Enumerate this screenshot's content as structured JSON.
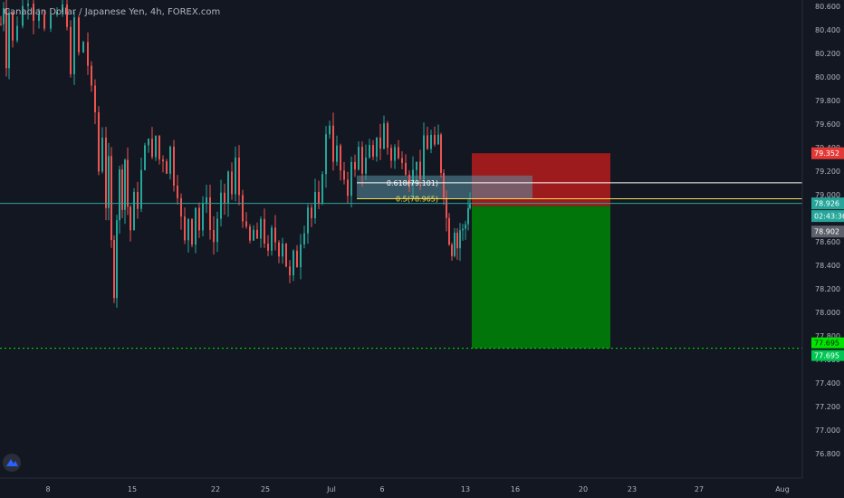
{
  "header": {
    "title": "Canadian Dollar / Japanese Yen, 4h, FOREX.com"
  },
  "colors": {
    "background": "#131722",
    "bull": "#26a69a",
    "bear": "#ef5350",
    "stop_zone": "#b71c1c",
    "target_zone": "#007a0a",
    "price_line": "#26a69a",
    "fib_0618": "#ffffff",
    "fib_05": "#f0e050",
    "target_line": "#00e600",
    "axis_text": "#b2b5be"
  },
  "chart_data": {
    "type": "candlestick",
    "symbol": "CADJPY",
    "timeframe": "4h",
    "y_axis": {
      "ylim": [
        76.7,
        80.68
      ],
      "ticks": [
        "80.600",
        "80.400",
        "80.200",
        "80.000",
        "79.800",
        "79.600",
        "79.400",
        "79.200",
        "79.000",
        "78.800",
        "78.600",
        "78.400",
        "78.200",
        "78.000",
        "77.800",
        "77.600",
        "77.400",
        "77.200",
        "77.000",
        "76.800"
      ]
    },
    "x_axis": {
      "ticks": [
        "8",
        "15",
        "22",
        "25",
        "Jul",
        "6",
        "13",
        "16",
        "20",
        "23",
        "27",
        "Aug"
      ]
    },
    "price_labels": {
      "stop": "79.352",
      "current": "78.926",
      "countdown": "02:43:36",
      "entry": "78.902",
      "target_top": "77.695",
      "target_bottom": "77.695"
    },
    "fib_levels": [
      {
        "label": "0.618(79.101)",
        "value": 79.101
      },
      {
        "label": "0.5(78.965)",
        "value": 78.965
      }
    ],
    "position": {
      "side": "short",
      "entry": 78.902,
      "stop": 79.352,
      "target": 77.695
    },
    "candle_path": [
      [
        0,
        80.45
      ],
      [
        3,
        80.6
      ],
      [
        6,
        80.1
      ],
      [
        9,
        80.55
      ],
      [
        13,
        80.3
      ],
      [
        18,
        80.45
      ],
      [
        24,
        80.6
      ],
      [
        30,
        80.65
      ],
      [
        36,
        80.5
      ],
      [
        42,
        80.55
      ],
      [
        48,
        80.4
      ],
      [
        55,
        80.5
      ],
      [
        62,
        80.55
      ],
      [
        68,
        80.6
      ],
      [
        73,
        80.45
      ],
      [
        77,
        80.0
      ],
      [
        81,
        80.5
      ],
      [
        86,
        80.2
      ],
      [
        91,
        80.3
      ],
      [
        96,
        80.1
      ],
      [
        100,
        79.9
      ],
      [
        104,
        79.7
      ],
      [
        108,
        79.2
      ],
      [
        112,
        79.5
      ],
      [
        116,
        78.9
      ],
      [
        119,
        79.3
      ],
      [
        122,
        78.6
      ],
      [
        125,
        78.15
      ],
      [
        128,
        78.8
      ],
      [
        131,
        79.2
      ],
      [
        134,
        78.9
      ],
      [
        137,
        79.3
      ],
      [
        140,
        78.9
      ],
      [
        143,
        78.7
      ],
      [
        147,
        79.0
      ],
      [
        151,
        78.9
      ],
      [
        155,
        79.2
      ],
      [
        159,
        79.4
      ],
      [
        163,
        79.5
      ],
      [
        167,
        79.3
      ],
      [
        171,
        79.5
      ],
      [
        175,
        79.3
      ],
      [
        179,
        79.3
      ],
      [
        183,
        79.2
      ],
      [
        187,
        79.4
      ],
      [
        191,
        79.1
      ],
      [
        195,
        79.0
      ],
      [
        199,
        78.8
      ],
      [
        203,
        78.6
      ],
      [
        207,
        78.8
      ],
      [
        211,
        78.6
      ],
      [
        215,
        78.9
      ],
      [
        219,
        78.7
      ],
      [
        223,
        78.9
      ],
      [
        227,
        79.0
      ],
      [
        231,
        78.7
      ],
      [
        235,
        78.6
      ],
      [
        239,
        78.8
      ],
      [
        243,
        79.0
      ],
      [
        247,
        78.9
      ],
      [
        251,
        79.2
      ],
      [
        255,
        79.0
      ],
      [
        259,
        79.3
      ],
      [
        263,
        79.0
      ],
      [
        267,
        78.8
      ],
      [
        271,
        78.7
      ],
      [
        275,
        78.6
      ],
      [
        279,
        78.7
      ],
      [
        283,
        78.6
      ],
      [
        287,
        78.8
      ],
      [
        291,
        78.6
      ],
      [
        295,
        78.5
      ],
      [
        299,
        78.7
      ],
      [
        303,
        78.6
      ],
      [
        307,
        78.5
      ],
      [
        311,
        78.6
      ],
      [
        315,
        78.4
      ],
      [
        319,
        78.3
      ],
      [
        323,
        78.5
      ],
      [
        327,
        78.4
      ],
      [
        331,
        78.6
      ],
      [
        335,
        78.7
      ],
      [
        339,
        78.9
      ],
      [
        343,
        78.8
      ],
      [
        347,
        79.0
      ],
      [
        351,
        78.9
      ],
      [
        355,
        79.2
      ],
      [
        359,
        79.5
      ],
      [
        363,
        79.6
      ],
      [
        367,
        79.3
      ],
      [
        371,
        79.4
      ],
      [
        375,
        79.2
      ],
      [
        379,
        79.1
      ],
      [
        383,
        79.0
      ],
      [
        387,
        79.3
      ],
      [
        391,
        79.2
      ],
      [
        395,
        79.4
      ],
      [
        399,
        79.2
      ],
      [
        403,
        79.3
      ],
      [
        407,
        79.4
      ],
      [
        411,
        79.3
      ],
      [
        415,
        79.5
      ],
      [
        419,
        79.4
      ],
      [
        423,
        79.6
      ],
      [
        427,
        79.4
      ],
      [
        431,
        79.3
      ],
      [
        435,
        79.4
      ],
      [
        439,
        79.3
      ],
      [
        443,
        79.3
      ],
      [
        447,
        79.2
      ],
      [
        451,
        79.1
      ],
      [
        455,
        79.2
      ],
      [
        459,
        79.3
      ],
      [
        463,
        79.1
      ],
      [
        467,
        79.5
      ],
      [
        471,
        79.4
      ],
      [
        475,
        79.5
      ],
      [
        479,
        79.4
      ],
      [
        483,
        79.5
      ],
      [
        486,
        79.2
      ],
      [
        489,
        79.0
      ],
      [
        492,
        78.8
      ],
      [
        495,
        78.6
      ],
      [
        498,
        78.5
      ],
      [
        501,
        78.7
      ],
      [
        504,
        78.55
      ],
      [
        507,
        78.7
      ],
      [
        510,
        78.7
      ],
      [
        513,
        78.75
      ],
      [
        516,
        78.9
      ],
      [
        518,
        78.92
      ]
    ]
  }
}
